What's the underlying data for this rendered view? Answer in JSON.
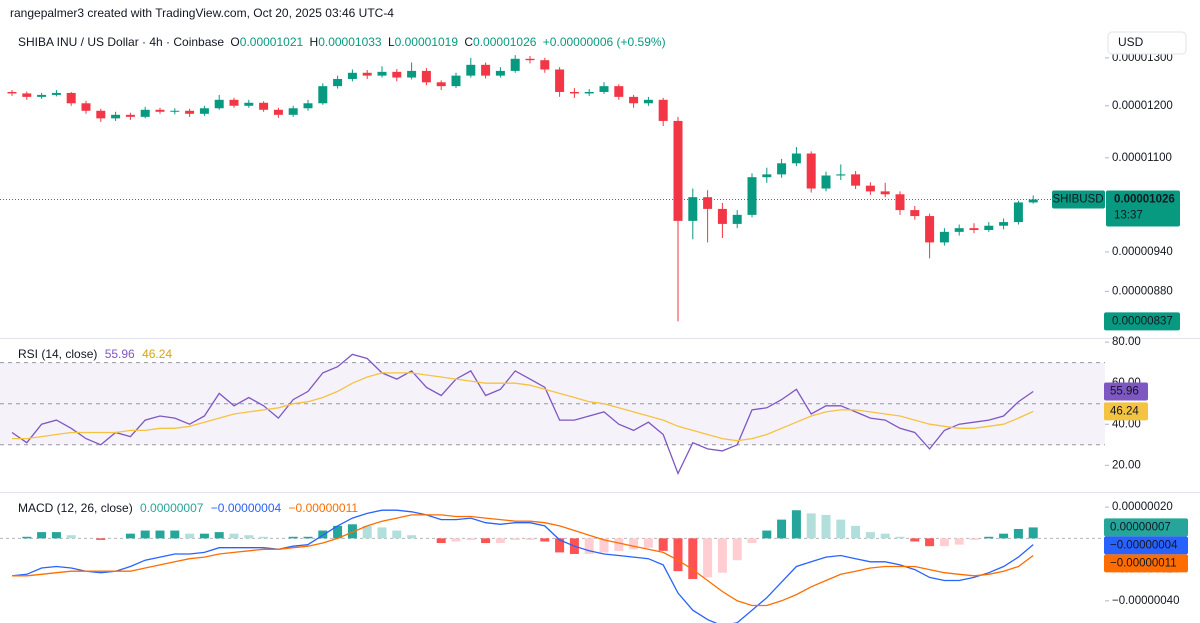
{
  "header": "rangepalmer3 created with TradingView.com, Oct 20, 2025 03:46 UTC-4",
  "chart_data": {
    "type": "candlestick",
    "symbol": "SHIBA INU / US Dollar · 4h · Coinbase",
    "currency": "USD",
    "legend": [
      {
        "label": "O",
        "value": "0.00001021"
      },
      {
        "label": "H",
        "value": "0.00001033"
      },
      {
        "label": "L",
        "value": "0.00001019"
      },
      {
        "label": "C",
        "value": "0.00001026"
      }
    ],
    "change": "+0.00000006 (+0.59%)",
    "log": true,
    "up_color": "#089981",
    "down_color": "#f23645",
    "ylim": [
      8.14e-06,
      1.362e-05
    ],
    "yticks": [
      {
        "value": 1.3e-05,
        "label": "0.00001300"
      },
      {
        "value": 1.2e-05,
        "label": "0.00001200"
      },
      {
        "value": 1.1e-05,
        "label": "0.00001100"
      },
      {
        "value": 9.4e-06,
        "label": "0.00000940"
      },
      {
        "value": 8.8e-06,
        "label": "0.00000880"
      }
    ],
    "open": [
      1.228e-05,
      1.225e-05,
      1.218e-05,
      1.222e-05,
      1.226e-05,
      1.205e-05,
      1.19e-05,
      1.175e-05,
      1.182e-05,
      1.178e-05,
      1.192e-05,
      1.188e-05,
      1.19e-05,
      1.184e-05,
      1.195e-05,
      1.212e-05,
      1.2e-05,
      1.206e-05,
      1.192e-05,
      1.182e-05,
      1.195e-05,
      1.205e-05,
      1.24e-05,
      1.255e-05,
      1.268e-05,
      1.262e-05,
      1.27e-05,
      1.258e-05,
      1.272e-05,
      1.248e-05,
      1.24e-05,
      1.262e-05,
      1.285e-05,
      1.262e-05,
      1.272e-05,
      1.298e-05,
      1.295e-05,
      1.275e-05,
      1.228e-05,
      1.225e-05,
      1.228e-05,
      1.24e-05,
      1.218e-05,
      1.205e-05,
      1.212e-05,
      1.17e-05,
      9.9e-06,
      1.03e-05,
      1.01e-05,
      9.85e-06,
      1e-05,
      1.065e-05,
      1.07e-05,
      1.09e-05,
      1.108e-05,
      1.045e-05,
      1.068e-05,
      1.07e-05,
      1.05e-05,
      1.04e-05,
      1.035e-05,
      1.008e-05,
      9.98e-06,
      9.55e-06,
      9.72e-06,
      9.78e-06,
      9.75e-06,
      9.82e-06,
      9.88e-06,
      1.021e-05
    ],
    "high": [
      1.232e-05,
      1.229e-05,
      1.226e-05,
      1.232e-05,
      1.228e-05,
      1.21e-05,
      1.194e-05,
      1.188e-05,
      1.186e-05,
      1.198e-05,
      1.196e-05,
      1.195e-05,
      1.194e-05,
      1.2e-05,
      1.222e-05,
      1.216e-05,
      1.212e-05,
      1.209e-05,
      1.196e-05,
      1.2e-05,
      1.212e-05,
      1.246e-05,
      1.262e-05,
      1.275e-05,
      1.274e-05,
      1.282e-05,
      1.276e-05,
      1.29e-05,
      1.278e-05,
      1.252e-05,
      1.268e-05,
      1.3e-05,
      1.29e-05,
      1.28e-05,
      1.306e-05,
      1.304e-05,
      1.3e-05,
      1.28e-05,
      1.236e-05,
      1.234e-05,
      1.248e-05,
      1.244e-05,
      1.222e-05,
      1.218e-05,
      1.216e-05,
      1.178e-05,
      1.045e-05,
      1.042e-05,
      1.02e-05,
      1.008e-05,
      1.072e-05,
      1.082e-05,
      1.098e-05,
      1.12e-05,
      1.112e-05,
      1.075e-05,
      1.088e-05,
      1.076e-05,
      1.056e-05,
      1.055e-05,
      1.04e-05,
      1.015e-05,
      1.002e-05,
      9.78e-06,
      9.84e-06,
      9.86e-06,
      9.88e-06,
      9.94e-06,
      1.024e-05,
      1.033e-05
    ],
    "low": [
      1.22e-05,
      1.212e-05,
      1.214e-05,
      1.219e-05,
      1.2e-05,
      1.184e-05,
      1.168e-05,
      1.17e-05,
      1.172e-05,
      1.175e-05,
      1.184e-05,
      1.183e-05,
      1.178e-05,
      1.18e-05,
      1.192e-05,
      1.196e-05,
      1.196e-05,
      1.188e-05,
      1.176e-05,
      1.178e-05,
      1.19e-05,
      1.202e-05,
      1.235e-05,
      1.25e-05,
      1.255e-05,
      1.258e-05,
      1.25e-05,
      1.254e-05,
      1.242e-05,
      1.232e-05,
      1.236e-05,
      1.258e-05,
      1.256e-05,
      1.258e-05,
      1.268e-05,
      1.288e-05,
      1.268e-05,
      1.218e-05,
      1.216e-05,
      1.22e-05,
      1.224e-05,
      1.212e-05,
      1.196e-05,
      1.2e-05,
      1.16e-05,
      8.37e-06,
      9.6e-06,
      9.55e-06,
      9.62e-06,
      9.78e-06,
      9.96e-06,
      1.055e-05,
      1.064e-05,
      1.085e-05,
      1.038e-05,
      1.04e-05,
      1.06e-05,
      1.044e-05,
      1.034e-05,
      1.03e-05,
      1e-05,
      9.92e-06,
      9.3e-06,
      9.5e-06,
      9.66e-06,
      9.7e-06,
      9.72e-06,
      9.76e-06,
      9.84e-06,
      1.019e-05
    ],
    "close": [
      1.225e-05,
      1.218e-05,
      1.222e-05,
      1.226e-05,
      1.205e-05,
      1.19e-05,
      1.175e-05,
      1.182e-05,
      1.178e-05,
      1.192e-05,
      1.188e-05,
      1.19e-05,
      1.184e-05,
      1.195e-05,
      1.212e-05,
      1.2e-05,
      1.206e-05,
      1.192e-05,
      1.182e-05,
      1.195e-05,
      1.205e-05,
      1.24e-05,
      1.255e-05,
      1.268e-05,
      1.262e-05,
      1.27e-05,
      1.258e-05,
      1.272e-05,
      1.248e-05,
      1.24e-05,
      1.262e-05,
      1.285e-05,
      1.262e-05,
      1.272e-05,
      1.298e-05,
      1.295e-05,
      1.275e-05,
      1.228e-05,
      1.225e-05,
      1.228e-05,
      1.24e-05,
      1.218e-05,
      1.205e-05,
      1.212e-05,
      1.17e-05,
      9.9e-06,
      1.03e-05,
      1.01e-05,
      9.85e-06,
      1e-05,
      1.065e-05,
      1.07e-05,
      1.09e-05,
      1.108e-05,
      1.045e-05,
      1.068e-05,
      1.07e-05,
      1.05e-05,
      1.04e-05,
      1.035e-05,
      1.008e-05,
      9.98e-06,
      9.55e-06,
      9.72e-06,
      9.78e-06,
      9.75e-06,
      9.82e-06,
      9.88e-06,
      1.021e-05,
      1.026e-05
    ],
    "last_price_tag": {
      "symbol": "SHIBUSD",
      "price": "0.00001026",
      "countdown": "13:37"
    },
    "low_tag": "0.00000837",
    "rsi": {
      "title": "RSI (14, close)",
      "ylim": [
        7,
        82
      ],
      "yticks": [
        {
          "value": 80,
          "label": "80.00"
        },
        {
          "value": 60,
          "label": "60.00"
        },
        {
          "value": 40,
          "label": "40.00"
        },
        {
          "value": 20,
          "label": "20.00"
        }
      ],
      "bands": [
        70,
        50,
        30
      ],
      "value_labels": [
        "55.96",
        "46.24"
      ],
      "series": [
        {
          "name": "RSI",
          "color": "#7e57c2",
          "values": [
            36,
            31,
            40,
            42,
            38,
            33,
            30,
            36,
            34,
            42,
            44,
            43,
            40,
            44,
            55,
            49,
            53,
            49,
            43,
            52,
            56,
            65,
            68,
            74,
            72,
            65,
            62,
            66,
            58,
            54,
            62,
            66,
            54,
            57,
            66,
            62,
            58,
            42,
            42,
            44,
            46,
            40,
            37,
            41,
            35,
            16,
            31,
            28,
            27,
            30,
            47,
            48,
            52,
            57,
            45,
            49,
            49,
            46,
            43,
            42,
            38,
            36,
            28,
            37,
            40,
            41,
            42,
            44,
            51,
            55.96
          ]
        },
        {
          "name": "RSI-based MA",
          "color": "#f5c342",
          "values": [
            33,
            33,
            34,
            35,
            36,
            36,
            36,
            36,
            37,
            37,
            38,
            38,
            39,
            41,
            43,
            45,
            46,
            47,
            48,
            50,
            51,
            53,
            56,
            60,
            63,
            65,
            65,
            65,
            64,
            63,
            62,
            61,
            60,
            60,
            60,
            59,
            57,
            55,
            53,
            51,
            50,
            48,
            46,
            44,
            42,
            39,
            37,
            35,
            33,
            32,
            33,
            35,
            38,
            41,
            44,
            46,
            47,
            47,
            46,
            45,
            44,
            42,
            40,
            39,
            38,
            38,
            39,
            40,
            43,
            46.24
          ]
        }
      ]
    },
    "macd": {
      "title": "MACD (12, 26, close)",
      "ylim": [
        -5.42e-07,
        2.84e-07
      ],
      "yticks": [
        {
          "value": 2e-07,
          "label": "0.00000020"
        },
        {
          "value": -2e-07,
          "label": "−0.00000020"
        },
        {
          "value": -4e-07,
          "label": "−0.00000040"
        }
      ],
      "value_labels": [
        "0.00000007",
        "−0.00000004",
        "−0.00000011"
      ],
      "histogram": {
        "name": "Histogram",
        "colors": [
          "#26a69a",
          "#b2dfdb",
          "#ff5252",
          "#ffcdd2"
        ],
        "values": [
          0,
          1e-08,
          4e-08,
          4e-08,
          2e-08,
          0,
          -1e-08,
          0,
          3e-08,
          5e-08,
          5e-08,
          5e-08,
          3e-08,
          3e-08,
          4e-08,
          3e-08,
          2e-08,
          1e-08,
          0,
          1e-08,
          1e-08,
          5e-08,
          8e-08,
          9e-08,
          8e-08,
          7e-08,
          5e-08,
          2e-08,
          0,
          -3e-08,
          -2e-08,
          -1e-08,
          -3e-08,
          -3e-08,
          -1e-08,
          -1e-08,
          -2e-08,
          -9e-08,
          -1e-07,
          -1e-07,
          -9e-08,
          -8e-08,
          -7e-08,
          -6e-08,
          -8e-08,
          -2.1e-07,
          -2.6e-07,
          -2.5e-07,
          -2.2e-07,
          -1.4e-07,
          -3e-08,
          5e-08,
          1.2e-07,
          1.8e-07,
          1.6e-07,
          1.5e-07,
          1.2e-07,
          8e-08,
          4e-08,
          3e-08,
          1e-08,
          -2e-08,
          -5e-08,
          -5e-08,
          -4e-08,
          -1e-08,
          1e-08,
          3e-08,
          6e-08,
          7e-08
        ]
      },
      "series": [
        {
          "name": "MACD",
          "color": "#2962ff",
          "values": [
            -2.4e-07,
            -2.3e-07,
            -1.9e-07,
            -1.8e-07,
            -1.9e-07,
            -2.1e-07,
            -2.2e-07,
            -2.1e-07,
            -1.8e-07,
            -1.4e-07,
            -1.2e-07,
            -1e-07,
            -1e-07,
            -9e-08,
            -6e-08,
            -6e-08,
            -6e-08,
            -6e-08,
            -7e-08,
            -5e-08,
            -4e-08,
            2e-08,
            8e-08,
            1.3e-07,
            1.6e-07,
            1.8e-07,
            1.8e-07,
            1.7e-07,
            1.5e-07,
            1.2e-07,
            1.2e-07,
            1.3e-07,
            1e-07,
            9e-08,
            1e-07,
            1e-07,
            8e-08,
            -1e-08,
            -5e-08,
            -8e-08,
            -1e-07,
            -1.1e-07,
            -1.2e-07,
            -1.3e-07,
            -1.7e-07,
            -3.5e-07,
            -4.6e-07,
            -5.2e-07,
            -5.6e-07,
            -5.4e-07,
            -4.6e-07,
            -3.8e-07,
            -2.8e-07,
            -1.8e-07,
            -1.5e-07,
            -1.2e-07,
            -1.1e-07,
            -1.3e-07,
            -1.5e-07,
            -1.5e-07,
            -1.7e-07,
            -2e-07,
            -2.5e-07,
            -2.7e-07,
            -2.7e-07,
            -2.5e-07,
            -2.2e-07,
            -1.8e-07,
            -1.2e-07,
            -4e-08
          ]
        },
        {
          "name": "Signal",
          "color": "#ff6d00",
          "values": [
            -2.4e-07,
            -2.4e-07,
            -2.3e-07,
            -2.2e-07,
            -2.1e-07,
            -2.1e-07,
            -2.1e-07,
            -2.1e-07,
            -2.1e-07,
            -1.9e-07,
            -1.7e-07,
            -1.5e-07,
            -1.3e-07,
            -1.2e-07,
            -1e-07,
            -9e-08,
            -8e-08,
            -7e-08,
            -7e-08,
            -6e-08,
            -5e-08,
            -3e-08,
            0,
            4e-08,
            8e-08,
            1.1e-07,
            1.3e-07,
            1.5e-07,
            1.5e-07,
            1.5e-07,
            1.4e-07,
            1.4e-07,
            1.3e-07,
            1.2e-07,
            1.1e-07,
            1.1e-07,
            1e-07,
            8e-08,
            5e-08,
            2e-08,
            -1e-08,
            -3e-08,
            -5e-08,
            -7e-08,
            -9e-08,
            -1.4e-07,
            -2e-07,
            -2.7e-07,
            -3.4e-07,
            -4e-07,
            -4.3e-07,
            -4.3e-07,
            -4e-07,
            -3.6e-07,
            -3.1e-07,
            -2.7e-07,
            -2.3e-07,
            -2.1e-07,
            -1.9e-07,
            -1.8e-07,
            -1.8e-07,
            -1.8e-07,
            -2e-07,
            -2.2e-07,
            -2.3e-07,
            -2.4e-07,
            -2.3e-07,
            -2.1e-07,
            -1.8e-07,
            -1.1e-07
          ]
        }
      ]
    }
  }
}
